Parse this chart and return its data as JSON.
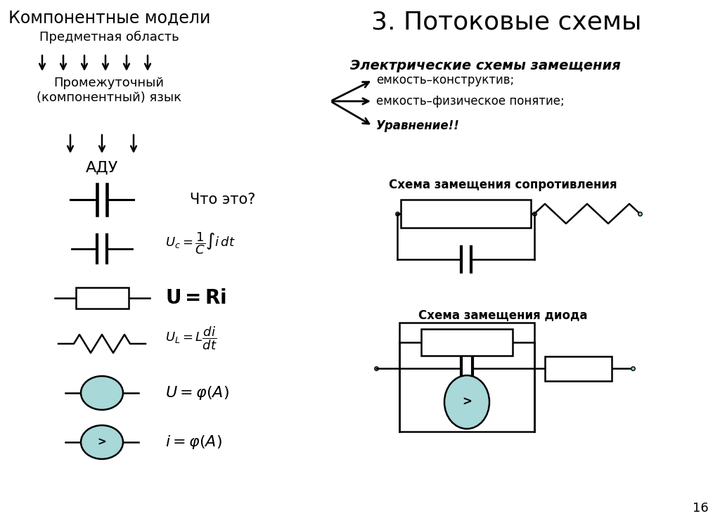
{
  "title_left": "Компонентные модели",
  "title_right": "3. Потоковые схемы",
  "subtitle_right": "Электрические схемы замещения",
  "label_predmetnaya": "Предметная область",
  "label_promezhutochny": "Промежуточный\n(компонентный) язык",
  "label_adu": "АДУ",
  "label_chto_eto": "Что это?",
  "bullet1": "емкость–конструктив;",
  "bullet2": "емкость–физическое понятие;",
  "bullet3": "Уравнение!!",
  "schema1_title": "Схема замещения сопротивления",
  "schema2_title": "Схема замещения диода",
  "bg_color": "#ffffff",
  "text_color": "#000000",
  "circle_fill": "#a8d8d8",
  "page_number": "16",
  "lw": 1.5
}
